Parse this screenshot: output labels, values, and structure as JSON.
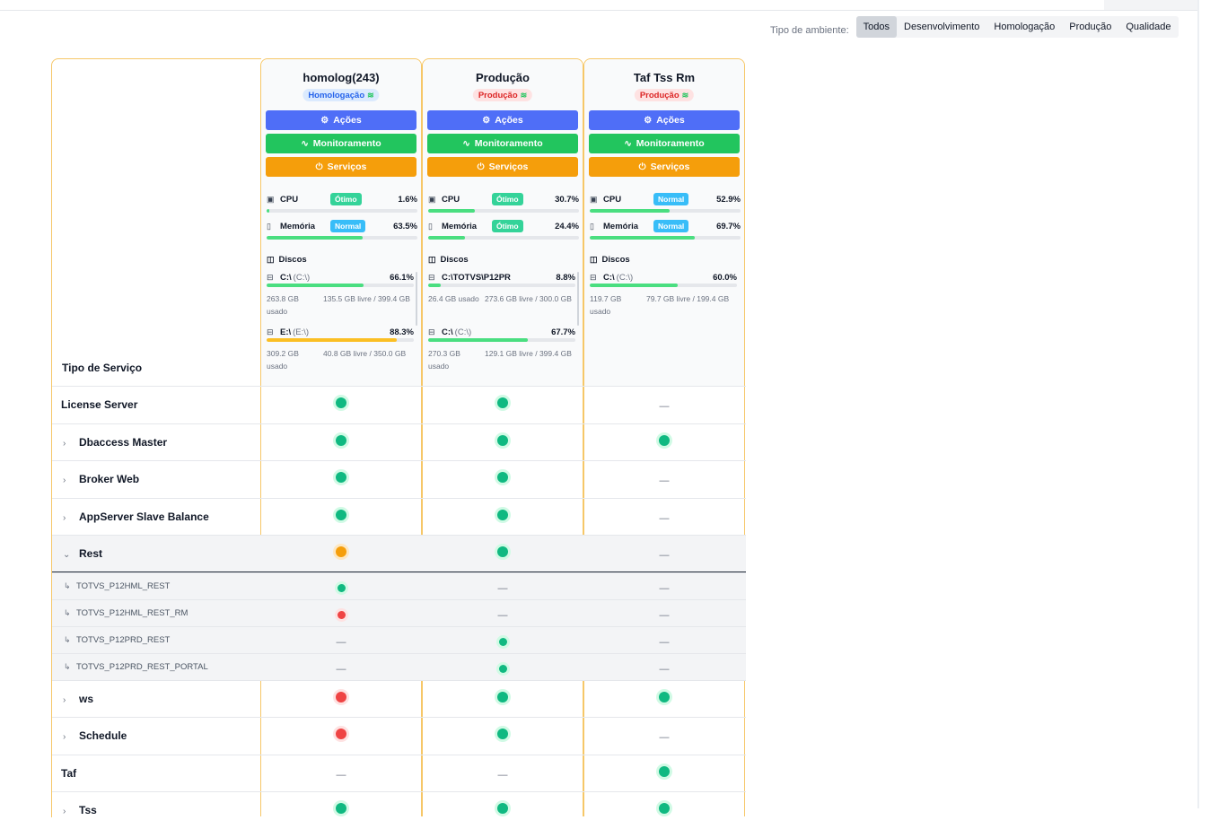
{
  "filter": {
    "label": "Tipo de ambiente:",
    "options": [
      "Todos",
      "Desenvolvimento",
      "Homologação",
      "Produção",
      "Qualidade"
    ],
    "active": "Todos"
  },
  "header": {
    "service_type_label": "Tipo de Serviço"
  },
  "environments": [
    {
      "name": "homolog(243)",
      "badge": "Homologação",
      "buttons": {
        "acoes": "Ações",
        "monitoramento": "Monitoramento",
        "servicos": "Serviços"
      },
      "cpu": {
        "label": "CPU",
        "status": "Ótimo",
        "value": "1.6%",
        "percent": 1.6
      },
      "memory": {
        "label": "Memória",
        "status": "Normal",
        "value": "63.5%",
        "percent": 63.5
      },
      "disks_label": "Discos",
      "disks": [
        {
          "name": "C:\\",
          "sub": "(C:\\)",
          "pct": "66.1%",
          "percent": 66.1,
          "used": "263.8 GB usado",
          "free": "135.5 GB livre / 399.4 GB"
        },
        {
          "name": "E:\\",
          "sub": "(E:\\)",
          "pct": "88.3%",
          "percent": 88.3,
          "used": "309.2 GB usado",
          "free": "40.8 GB livre / 350.0 GB"
        }
      ]
    },
    {
      "name": "Produção",
      "badge": "Produção",
      "buttons": {
        "acoes": "Ações",
        "monitoramento": "Monitoramento",
        "servicos": "Serviços"
      },
      "cpu": {
        "label": "CPU",
        "status": "Ótimo",
        "value": "30.7%",
        "percent": 30.7
      },
      "memory": {
        "label": "Memória",
        "status": "Ótimo",
        "value": "24.4%",
        "percent": 24.4
      },
      "disks_label": "Discos",
      "disks": [
        {
          "name": "C:\\TOTVS\\P12PR",
          "sub": "",
          "pct": "8.8%",
          "percent": 8.8,
          "used": "26.4 GB usado",
          "free": "273.6 GB livre / 300.0 GB"
        },
        {
          "name": "C:\\",
          "sub": "(C:\\)",
          "pct": "67.7%",
          "percent": 67.7,
          "used": "270.3 GB usado",
          "free": "129.1 GB livre / 399.4 GB"
        }
      ]
    },
    {
      "name": "Taf Tss Rm",
      "badge": "Produção",
      "buttons": {
        "acoes": "Ações",
        "monitoramento": "Monitoramento",
        "servicos": "Serviços"
      },
      "cpu": {
        "label": "CPU",
        "status": "Normal",
        "value": "52.9%",
        "percent": 52.9
      },
      "memory": {
        "label": "Memória",
        "status": "Normal",
        "value": "69.7%",
        "percent": 69.7
      },
      "disks_label": "Discos",
      "disks": [
        {
          "name": "C:\\",
          "sub": "(C:\\)",
          "pct": "60.0%",
          "percent": 60.0,
          "used": "119.7 GB usado",
          "free": "79.7 GB livre / 199.4 GB"
        }
      ]
    }
  ],
  "services": [
    {
      "label": "License Server",
      "expandable": false,
      "status": [
        "green",
        "green",
        "none"
      ]
    },
    {
      "label": "Dbaccess Master",
      "expandable": true,
      "status": [
        "green",
        "green",
        "green"
      ]
    },
    {
      "label": "Broker Web",
      "expandable": true,
      "status": [
        "green",
        "green",
        "none"
      ]
    },
    {
      "label": "AppServer Slave Balance",
      "expandable": true,
      "status": [
        "green",
        "green",
        "none"
      ]
    },
    {
      "label": "Rest",
      "expandable": true,
      "expanded": true,
      "status": [
        "orange",
        "green",
        "none"
      ],
      "children": [
        {
          "label": "TOTVS_P12HML_REST",
          "status": [
            "green",
            "none",
            "none"
          ]
        },
        {
          "label": "TOTVS_P12HML_REST_RM",
          "status": [
            "red",
            "none",
            "none"
          ]
        },
        {
          "label": "TOTVS_P12PRD_REST",
          "status": [
            "none",
            "green",
            "none"
          ]
        },
        {
          "label": "TOTVS_P12PRD_REST_PORTAL",
          "status": [
            "none",
            "green",
            "none"
          ]
        }
      ]
    },
    {
      "label": "ws",
      "expandable": true,
      "status": [
        "red",
        "green",
        "green"
      ]
    },
    {
      "label": "Schedule",
      "expandable": true,
      "status": [
        "red",
        "green",
        "none"
      ]
    },
    {
      "label": "Taf",
      "expandable": false,
      "status": [
        "none",
        "none",
        "green"
      ]
    },
    {
      "label": "Tss",
      "expandable": true,
      "status": [
        "green",
        "green",
        "green"
      ]
    }
  ],
  "empty_cell": "—",
  "icons": {
    "acoes": "gear-icon",
    "monitoramento": "activity-icon",
    "servicos": "power-icon",
    "cpu": "cpu-icon",
    "memoria": "memory-icon",
    "discos": "disks-icon",
    "disk": "drive-icon",
    "wifi": "wifi-icon",
    "expand": "chevron-right-icon",
    "collapse": "chevron-down-icon",
    "child": "child-arrow-icon"
  },
  "colors": {
    "border": "#f6c768",
    "acoes": "#4f6ef7",
    "monitoramento": "#22c55e",
    "servicos": "#f59e0b",
    "status_green": "#10b981",
    "status_orange": "#f59e0b",
    "status_red": "#ef4444"
  }
}
